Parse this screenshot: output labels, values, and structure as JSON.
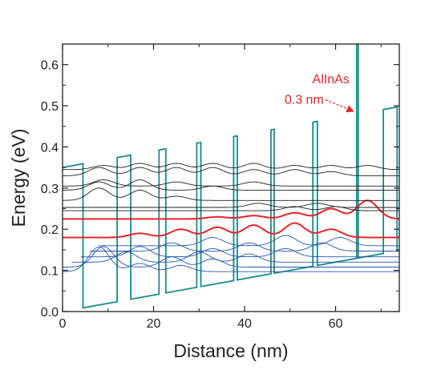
{
  "chart_data": {
    "type": "line",
    "title": "",
    "xlabel": "Distance (nm)",
    "ylabel": "Energy (eV)",
    "xlim": [
      0,
      74
    ],
    "ylim": [
      0,
      0.65
    ],
    "xticks": [
      0,
      20,
      40,
      60
    ],
    "xticklabels": [
      "0",
      "20",
      "40",
      "60"
    ],
    "yticks": [
      0.0,
      0.1,
      0.2,
      0.3,
      0.4,
      0.5,
      0.6
    ],
    "yticklabels": [
      "0.0",
      "0.1",
      "0.2",
      "0.3",
      "0.4",
      "0.5",
      "0.6"
    ],
    "grid": false,
    "legend": "none",
    "colors": {
      "band_profile": "#1a8a8a",
      "highlighted_states": "#e8232a",
      "lower_states": "#2155b0",
      "upper_states": "#231f20",
      "annotation": "#e8232a"
    },
    "band_profile": {
      "slope_ev_per_nm": 0.002,
      "barrier_offset_ev": 0.35,
      "barriers": [
        [
          0.0,
          4.5
        ],
        [
          12.0,
          15.0
        ],
        [
          21.2,
          22.7
        ],
        [
          29.5,
          30.4
        ],
        [
          37.6,
          38.4
        ],
        [
          45.8,
          46.5
        ],
        [
          55.0,
          56.0
        ],
        [
          70.5,
          73.5
        ]
      ],
      "thin_barrier": {
        "x": 64.8,
        "peak": 0.65,
        "label": "AlInAs",
        "thickness_label": "0.3 nm"
      }
    },
    "states": [
      {
        "group": "lower",
        "energy": 0.097,
        "x_start": 0,
        "x_end": 74,
        "peaks": [
          [
            8,
            0.06
          ],
          [
            17,
            0.02
          ],
          [
            26,
            0.015
          ]
        ]
      },
      {
        "group": "lower",
        "energy": 0.108,
        "x_start": 0,
        "x_end": 74,
        "peaks": [
          [
            9,
            0.05
          ],
          [
            24,
            0.025
          ],
          [
            33,
            0.02
          ]
        ]
      },
      {
        "group": "lower",
        "energy": 0.12,
        "x_start": 2,
        "x_end": 74,
        "peaks": [
          [
            14,
            0.025
          ],
          [
            30,
            0.025
          ],
          [
            41,
            0.02
          ]
        ]
      },
      {
        "group": "lower",
        "energy": 0.133,
        "x_start": 4,
        "x_end": 74,
        "peaks": [
          [
            17,
            0.025
          ],
          [
            33,
            0.02
          ],
          [
            49,
            0.02
          ]
        ]
      },
      {
        "group": "lower",
        "energy": 0.147,
        "x_start": 6,
        "x_end": 74,
        "peaks": [
          [
            24,
            0.02
          ],
          [
            41,
            0.02
          ],
          [
            57,
            0.02
          ]
        ]
      },
      {
        "group": "lower",
        "energy": 0.16,
        "x_start": 8,
        "x_end": 74,
        "peaks": [
          [
            33,
            0.02
          ],
          [
            49,
            0.025
          ],
          [
            61,
            0.02
          ]
        ]
      },
      {
        "group": "red",
        "energy": 0.18,
        "x_start": 0,
        "x_end": 74,
        "peaks": [
          [
            17,
            0.01
          ],
          [
            26,
            0.02
          ],
          [
            34,
            0.025
          ],
          [
            42,
            0.03
          ],
          [
            51,
            0.035
          ],
          [
            59,
            0.02
          ]
        ]
      },
      {
        "group": "red",
        "energy": 0.225,
        "x_start": 0,
        "x_end": 74,
        "peaks": [
          [
            34,
            0.005
          ],
          [
            42,
            0.008
          ],
          [
            51,
            0.015
          ],
          [
            59,
            0.025
          ],
          [
            67,
            0.045
          ]
        ]
      },
      {
        "group": "upper",
        "energy": 0.245,
        "x_start": 0,
        "x_end": 74,
        "peaks": [
          [
            51,
            0.01
          ],
          [
            60,
            0.01
          ]
        ]
      },
      {
        "group": "upper",
        "energy": 0.253,
        "x_start": 0,
        "x_end": 74,
        "peaks": [
          [
            43,
            0.01
          ],
          [
            56,
            0.01
          ]
        ]
      },
      {
        "group": "upper",
        "energy": 0.27,
        "x_start": 0,
        "x_end": 74,
        "peaks": [
          [
            8,
            0.03
          ],
          [
            17,
            0.025
          ],
          [
            25,
            0.01
          ]
        ]
      },
      {
        "group": "upper",
        "energy": 0.295,
        "x_start": 0,
        "x_end": 74,
        "peaks": [
          [
            8,
            0.02
          ],
          [
            17,
            0.025
          ],
          [
            33,
            0.01
          ]
        ]
      },
      {
        "group": "upper",
        "energy": 0.305,
        "x_start": 0,
        "x_end": 74,
        "peaks": [
          [
            9,
            0.015
          ],
          [
            25,
            0.01
          ],
          [
            42,
            0.01
          ]
        ]
      },
      {
        "group": "upper",
        "energy": 0.33,
        "x_start": 0,
        "x_end": 74,
        "peaks": [
          [
            8,
            0.02
          ],
          [
            17,
            0.02
          ],
          [
            25,
            0.02
          ],
          [
            33,
            0.02
          ],
          [
            42,
            0.015
          ],
          [
            51,
            0.015
          ],
          [
            59,
            0.01
          ]
        ]
      },
      {
        "group": "upper",
        "energy": 0.345,
        "x_start": 0,
        "x_end": 74,
        "peaks": [
          [
            9,
            0.01
          ],
          [
            17,
            0.015
          ],
          [
            25,
            0.015
          ],
          [
            33,
            0.015
          ],
          [
            42,
            0.015
          ],
          [
            51,
            0.01
          ],
          [
            59,
            0.01
          ],
          [
            67,
            0.01
          ]
        ]
      }
    ],
    "annotations": [
      {
        "text": "AlInAs",
        "data_x": 64.8,
        "data_y": 0.555
      },
      {
        "text": "0.3 nm",
        "data_x": 64.8,
        "data_y": 0.505
      }
    ]
  }
}
